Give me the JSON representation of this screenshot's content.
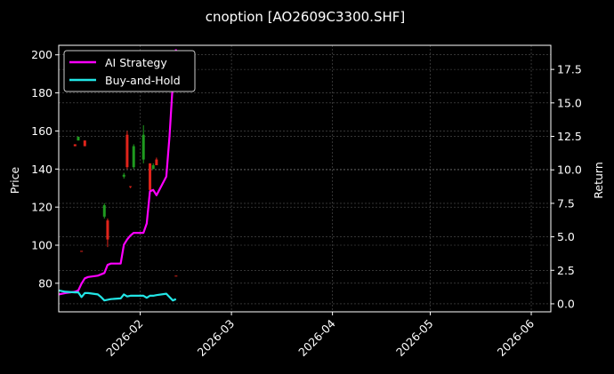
{
  "chart_data": {
    "type": "line",
    "title": "cnoption [AO2609C3300.SHF]",
    "xlabel": "",
    "ylabel": "Price",
    "ylabel_right": "Return",
    "theme": {
      "background": "#000000",
      "foreground": "#ffffff",
      "grid": "#555555",
      "up": "#1f9a1f",
      "down": "#e0241b"
    },
    "x_ticks": [
      "2026-02",
      "2026-03",
      "2026-04",
      "2026-05",
      "2026-06"
    ],
    "y_left_ticks": [
      80,
      100,
      120,
      140,
      160,
      180,
      200
    ],
    "y_left_range": [
      65,
      205
    ],
    "y_right_ticks": [
      "0.0",
      "2.5",
      "5.0",
      "7.5",
      "10.0",
      "12.5",
      "15.0",
      "17.5"
    ],
    "y_right_range": [
      -0.6,
      19.3
    ],
    "x_range": [
      "2026-01-07",
      "2026-06-07"
    ],
    "grid": true,
    "legend_position": "upper left",
    "legend": [
      {
        "label": "AI Strategy",
        "color": "#ff00ff"
      },
      {
        "label": "Buy-and-Hold",
        "color": "#22e5e5"
      }
    ],
    "candles": [
      {
        "date": "2026-01-12",
        "open": 153,
        "close": 152,
        "high": 153,
        "low": 152,
        "dir": "down"
      },
      {
        "date": "2026-01-13",
        "open": 155,
        "close": 157,
        "high": 157,
        "low": 155,
        "dir": "up"
      },
      {
        "date": "2026-01-14",
        "open": 97,
        "close": 97,
        "high": 97,
        "low": 97,
        "dir": "down"
      },
      {
        "date": "2026-01-15",
        "open": 155,
        "close": 152,
        "high": 155,
        "low": 152,
        "dir": "down"
      },
      {
        "date": "2026-01-21",
        "open": 115,
        "close": 121,
        "high": 122,
        "low": 114,
        "dir": "up"
      },
      {
        "date": "2026-01-22",
        "open": 113,
        "close": 103,
        "high": 114,
        "low": 99,
        "dir": "down"
      },
      {
        "date": "2026-01-27",
        "open": 136,
        "close": 137,
        "high": 138,
        "low": 135,
        "dir": "up"
      },
      {
        "date": "2026-01-28",
        "open": 158,
        "close": 141,
        "high": 160,
        "low": 140,
        "dir": "down"
      },
      {
        "date": "2026-01-29",
        "open": 131,
        "close": 131,
        "high": 131,
        "low": 130,
        "dir": "down"
      },
      {
        "date": "2026-01-30",
        "open": 141,
        "close": 152,
        "high": 153,
        "low": 140,
        "dir": "up"
      },
      {
        "date": "2026-02-02",
        "open": 145,
        "close": 158,
        "high": 163,
        "low": 143,
        "dir": "up"
      },
      {
        "date": "2026-02-04",
        "open": 143,
        "close": 129,
        "high": 143,
        "low": 128,
        "dir": "down"
      },
      {
        "date": "2026-02-05",
        "open": 140,
        "close": 142,
        "high": 143,
        "low": 140,
        "dir": "up"
      },
      {
        "date": "2026-02-06",
        "open": 145,
        "close": 142,
        "high": 146,
        "low": 142,
        "dir": "down"
      },
      {
        "date": "2026-02-12",
        "open": 84,
        "close": 84,
        "high": 84,
        "low": 84,
        "dir": "down"
      }
    ],
    "series": [
      {
        "name": "AI Strategy",
        "axis": "right",
        "x": [
          "2026-01-07",
          "2026-01-09",
          "2026-01-12",
          "2026-01-13",
          "2026-01-14",
          "2026-01-15",
          "2026-01-16",
          "2026-01-19",
          "2026-01-20",
          "2026-01-21",
          "2026-01-22",
          "2026-01-23",
          "2026-01-26",
          "2026-01-27",
          "2026-01-28",
          "2026-01-29",
          "2026-01-30",
          "2026-02-02",
          "2026-02-03",
          "2026-02-04",
          "2026-02-05",
          "2026-02-06",
          "2026-02-09",
          "2026-02-10",
          "2026-02-11",
          "2026-02-12"
        ],
        "values": [
          0.7,
          0.8,
          0.9,
          1.0,
          1.5,
          1.9,
          2.0,
          2.1,
          2.2,
          2.3,
          2.9,
          3.0,
          3.0,
          4.4,
          4.8,
          5.1,
          5.3,
          5.3,
          6.0,
          8.4,
          8.5,
          8.1,
          9.5,
          12.5,
          16.5,
          19.0
        ]
      },
      {
        "name": "Buy-and-Hold",
        "axis": "right",
        "x": [
          "2026-01-07",
          "2026-01-09",
          "2026-01-12",
          "2026-01-13",
          "2026-01-14",
          "2026-01-15",
          "2026-01-16",
          "2026-01-19",
          "2026-01-20",
          "2026-01-21",
          "2026-01-22",
          "2026-01-23",
          "2026-01-26",
          "2026-01-27",
          "2026-01-28",
          "2026-01-29",
          "2026-01-30",
          "2026-02-02",
          "2026-02-03",
          "2026-02-04",
          "2026-02-05",
          "2026-02-06",
          "2026-02-09",
          "2026-02-10",
          "2026-02-11",
          "2026-02-12"
        ],
        "values": [
          1.0,
          0.9,
          0.85,
          0.85,
          0.5,
          0.8,
          0.8,
          0.7,
          0.5,
          0.25,
          0.3,
          0.35,
          0.4,
          0.7,
          0.55,
          0.6,
          0.6,
          0.6,
          0.45,
          0.6,
          0.6,
          0.65,
          0.75,
          0.5,
          0.25,
          0.35
        ]
      }
    ]
  }
}
